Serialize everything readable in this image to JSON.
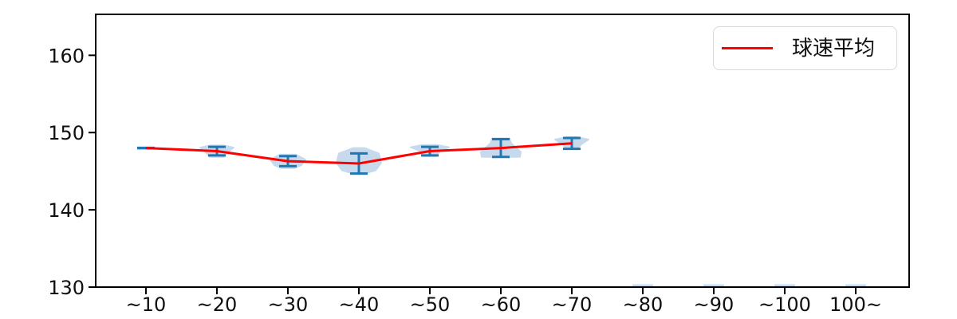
{
  "chart_data": {
    "type": "line",
    "title": "",
    "xlabel": "",
    "ylabel": "",
    "categories": [
      "~10",
      "~20",
      "~30",
      "~40",
      "~50",
      "~60",
      "~70",
      "~80",
      "~90",
      "~100",
      "100~"
    ],
    "yticks": [
      130,
      140,
      150,
      160
    ],
    "ylim": [
      130,
      165.3
    ],
    "grid": false,
    "legend": {
      "label": "球速平均",
      "position": "upper-right"
    },
    "colors": {
      "line": "#ff0000",
      "errorbar": "#1f77b4",
      "violin": "#c7daed",
      "axis": "#000000",
      "text": "#0f0f0f",
      "legend_border": "#d8d8d8"
    },
    "series": [
      {
        "name": "球速平均",
        "type": "line+errorbar",
        "color": "#ff0000",
        "points": [
          {
            "category": "~10",
            "index": 0,
            "mean": 148.0,
            "err": 0
          },
          {
            "category": "~20",
            "index": 1,
            "mean": 147.6,
            "err": 0.55
          },
          {
            "category": "~30",
            "index": 2,
            "mean": 146.3,
            "err": 0.65
          },
          {
            "category": "~40",
            "index": 3,
            "mean": 146.0,
            "err": 1.3
          },
          {
            "category": "~50",
            "index": 4,
            "mean": 147.6,
            "err": 0.55
          },
          {
            "category": "~60",
            "index": 5,
            "mean": 148.0,
            "err": 1.15
          },
          {
            "category": "~70",
            "index": 6,
            "mean": 148.6,
            "err": 0.7
          }
        ]
      }
    ],
    "violins": {
      "note": "light-blue distribution blobs behind errorbars; profile = [value_kmh, half_width_px] top to bottom",
      "profiles": [
        {
          "index": 1,
          "points": [
            [
              148.35,
              8
            ],
            [
              148.05,
              21
            ],
            [
              147.5,
              14
            ],
            [
              146.85,
              9
            ]
          ]
        },
        {
          "index": 2,
          "points": [
            [
              147.15,
              10
            ],
            [
              146.5,
              22
            ],
            [
              145.8,
              17
            ],
            [
              145.4,
              8
            ]
          ]
        },
        {
          "index": 3,
          "points": [
            [
              148.0,
              7
            ],
            [
              147.3,
              25
            ],
            [
              146.1,
              28
            ],
            [
              145.1,
              21
            ],
            [
              144.7,
              7
            ]
          ]
        },
        {
          "index": 4,
          "points": [
            [
              148.4,
              9
            ],
            [
              148.1,
              24
            ],
            [
              147.65,
              13
            ],
            [
              146.95,
              8
            ]
          ]
        },
        {
          "index": 5,
          "points": [
            [
              149.25,
              11
            ],
            [
              148.6,
              13
            ],
            [
              147.5,
              25
            ],
            [
              146.85,
              24
            ]
          ]
        },
        {
          "index": 6,
          "points": [
            [
              149.4,
              7
            ],
            [
              149.1,
              21
            ],
            [
              148.5,
              12
            ],
            [
              147.85,
              6
            ]
          ]
        }
      ],
      "baseline_strips": {
        "indices": [
          7,
          8,
          9,
          10
        ],
        "half_width": 13,
        "height": 3.5
      }
    }
  }
}
